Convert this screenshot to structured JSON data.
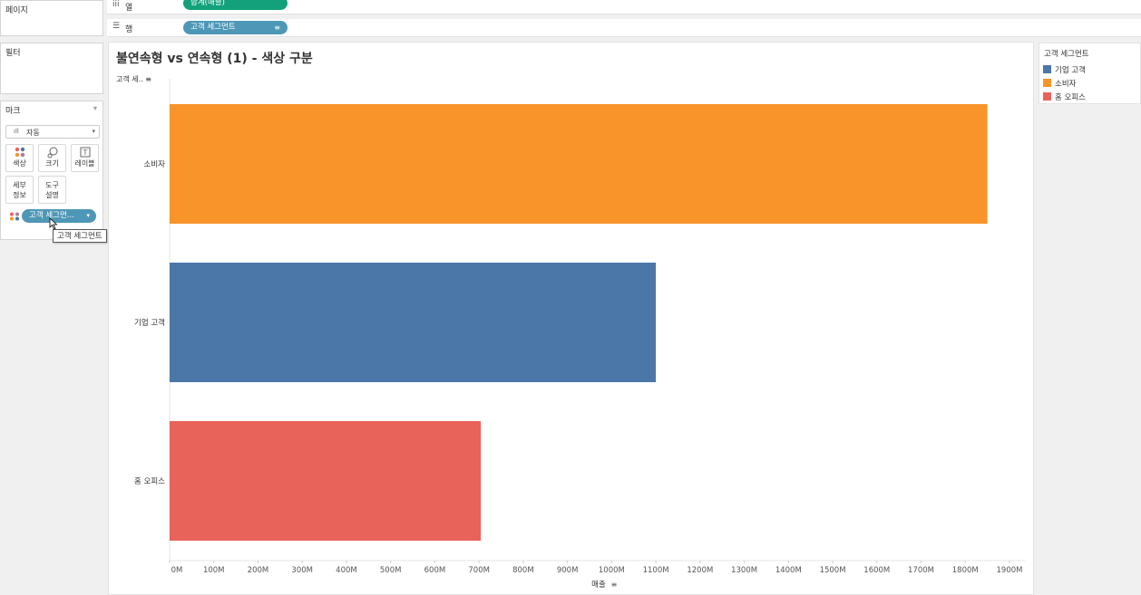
{
  "pages_panel": {
    "title": "페이지"
  },
  "filters_panel": {
    "title": "필터"
  },
  "marks_panel": {
    "title": "마크",
    "mark_type": "자동",
    "buttons": {
      "color": "색상",
      "size": "크기",
      "label": "레이블",
      "detail_line1": "세부",
      "detail_line2": "정보",
      "tooltip_line1": "도구",
      "tooltip_line2": "설명"
    },
    "color_field": "고객 세그먼...",
    "hover_tooltip": "고객 세그먼트"
  },
  "shelves": {
    "columns": {
      "label": "열",
      "pill": "합계(매출)"
    },
    "rows": {
      "label": "행",
      "pill": "고객 세그먼트"
    }
  },
  "viz": {
    "title": "불연속형 vs 연속형 (1) - 색상 구분",
    "row_header": "고객 세..",
    "x_axis_title": "매출"
  },
  "legend": {
    "title": "고객 세그먼트",
    "items": [
      {
        "label": "기업 고객",
        "color": "#4a77a8"
      },
      {
        "label": "소비자",
        "color": "#f89429"
      },
      {
        "label": "홈 오피스",
        "color": "#e8635a"
      }
    ]
  },
  "chart_data": {
    "type": "bar",
    "orientation": "horizontal",
    "categories": [
      "소비자",
      "기업 고객",
      "홈 오피스"
    ],
    "values": [
      1850,
      1100,
      704
    ],
    "colors": [
      "#f89429",
      "#4a77a8",
      "#e8635a"
    ],
    "unit": "M",
    "xlabel": "매출",
    "ylabel": "고객 세..",
    "xlim": [
      0,
      1900
    ],
    "x_ticks": [
      "0M",
      "100M",
      "200M",
      "300M",
      "400M",
      "500M",
      "600M",
      "700M",
      "800M",
      "900M",
      "1000M",
      "1100M",
      "1200M",
      "1300M",
      "1400M",
      "1500M",
      "1600M",
      "1700M",
      "1800M",
      "1900M"
    ],
    "grid": false
  }
}
